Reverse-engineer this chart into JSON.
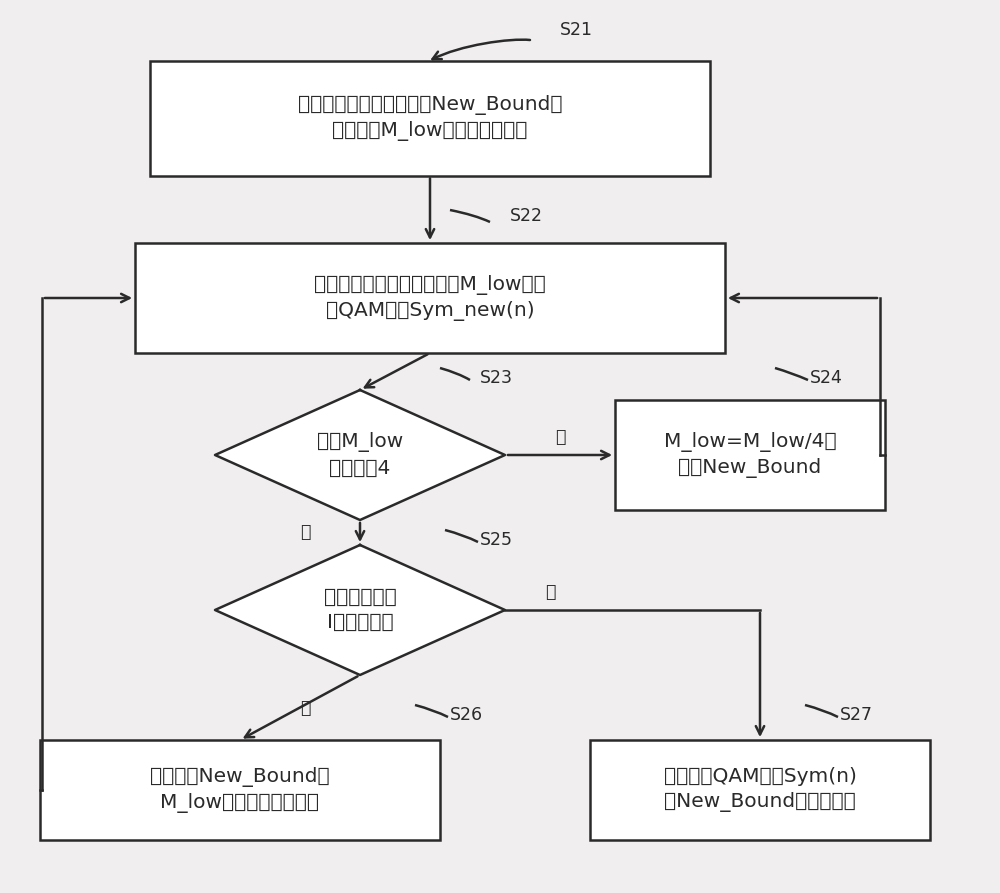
{
  "bg_color": "#f0eeee",
  "box_fc": "#ffffff",
  "box_ec": "#2a2a2a",
  "arrow_color": "#2a2a2a",
  "text_color": "#2a2a2a",
  "lw": 1.8,
  "fs_main": 14.5,
  "fs_step": 12.5,
  "box1_text": "初始化降阶星座区间边界New_Bound、\n降阶阶数M_low，设置迭代标志",
  "box2_text": "执行星座转换步骤，得到与M_low对应\n的QAM信号Sym_new(n)",
  "d1_text": "判断M_low\n是否等于4",
  "box4_text": "M_low=M_low/4，\n更新New_Bound",
  "d2_text": "判断迭代标志\nI是否被设置",
  "box6_text": "重新设置New_Bound和\nM_low，并撤销迭代标志",
  "box7_text": "基于高阶QAM信号Sym(n)\n和New_Bound进行软解调",
  "s21": "S21",
  "s22": "S22",
  "s23": "S23",
  "s24": "S24",
  "s25": "S25",
  "s26": "S26",
  "s27": "S27",
  "yes": "是",
  "no": "否"
}
